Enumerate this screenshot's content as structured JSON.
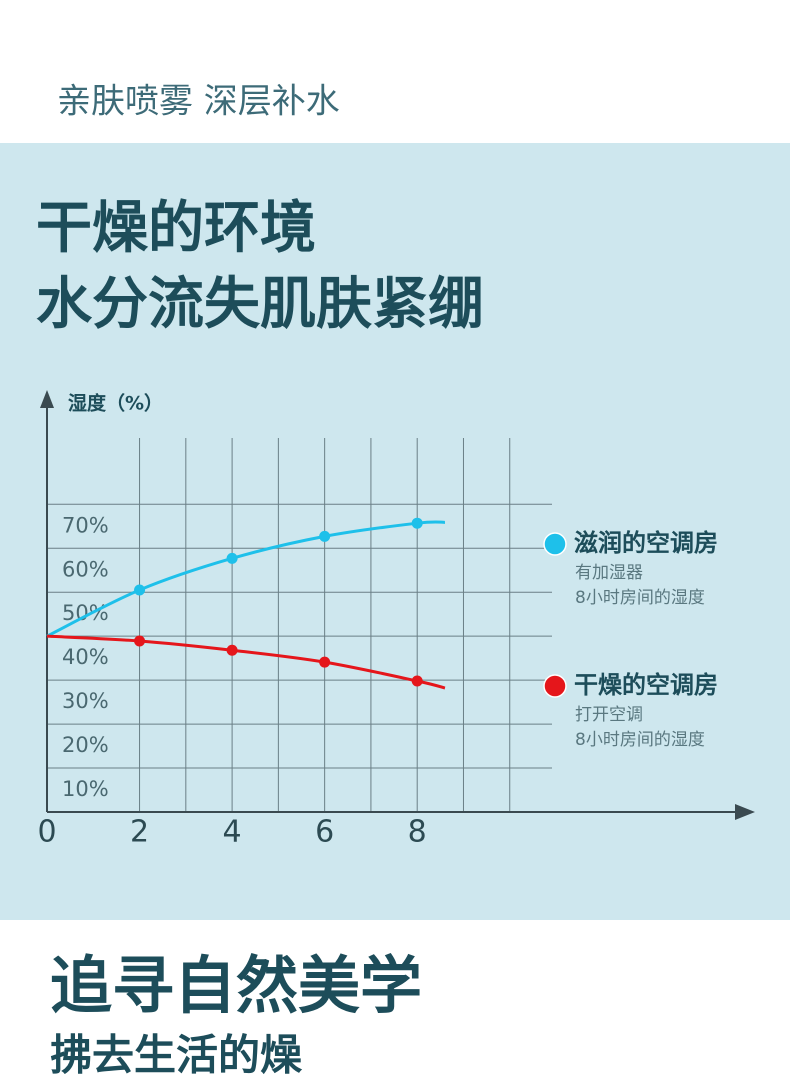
{
  "header": {
    "subtitle": "亲肤喷雾 深层补水"
  },
  "headline": [
    "干燥的环境",
    "水分流失肌肤紧绷"
  ],
  "chart_data": {
    "type": "line",
    "y_label": "湿度（%）",
    "x": [
      0,
      2,
      4,
      6,
      8,
      8.6
    ],
    "series": [
      {
        "name": "滋润的空调房",
        "notes": [
          "有加湿器",
          "8小时房间的湿度"
        ],
        "color": "#1ec0ea",
        "values": [
          40,
          50.5,
          57.7,
          62.7,
          65.7,
          65.9
        ]
      },
      {
        "name": "干燥的空调房",
        "notes": [
          "打开空调",
          "8小时房间的湿度"
        ],
        "color": "#e5161b",
        "values": [
          40,
          38.9,
          36.8,
          34.1,
          29.8,
          28.2
        ]
      }
    ],
    "xlim": [
      0,
      15.3
    ],
    "ylim": [
      0,
      96
    ],
    "xticks": [
      0,
      2,
      4,
      6,
      8
    ],
    "xgrid": [
      2,
      3,
      4,
      5,
      6,
      7,
      8,
      9,
      10
    ],
    "yticks": [
      {
        "value": 10,
        "label": "10%"
      },
      {
        "value": 20,
        "label": "20%"
      },
      {
        "value": 30,
        "label": "30%"
      },
      {
        "value": 40,
        "label": "40%"
      },
      {
        "value": 50,
        "label": "50%"
      },
      {
        "value": 60,
        "label": "60%"
      },
      {
        "value": 70,
        "label": "70%"
      }
    ],
    "grid": true
  },
  "footer": {
    "title": "追寻自然美学",
    "subtitle": "拂去生活的燥"
  }
}
